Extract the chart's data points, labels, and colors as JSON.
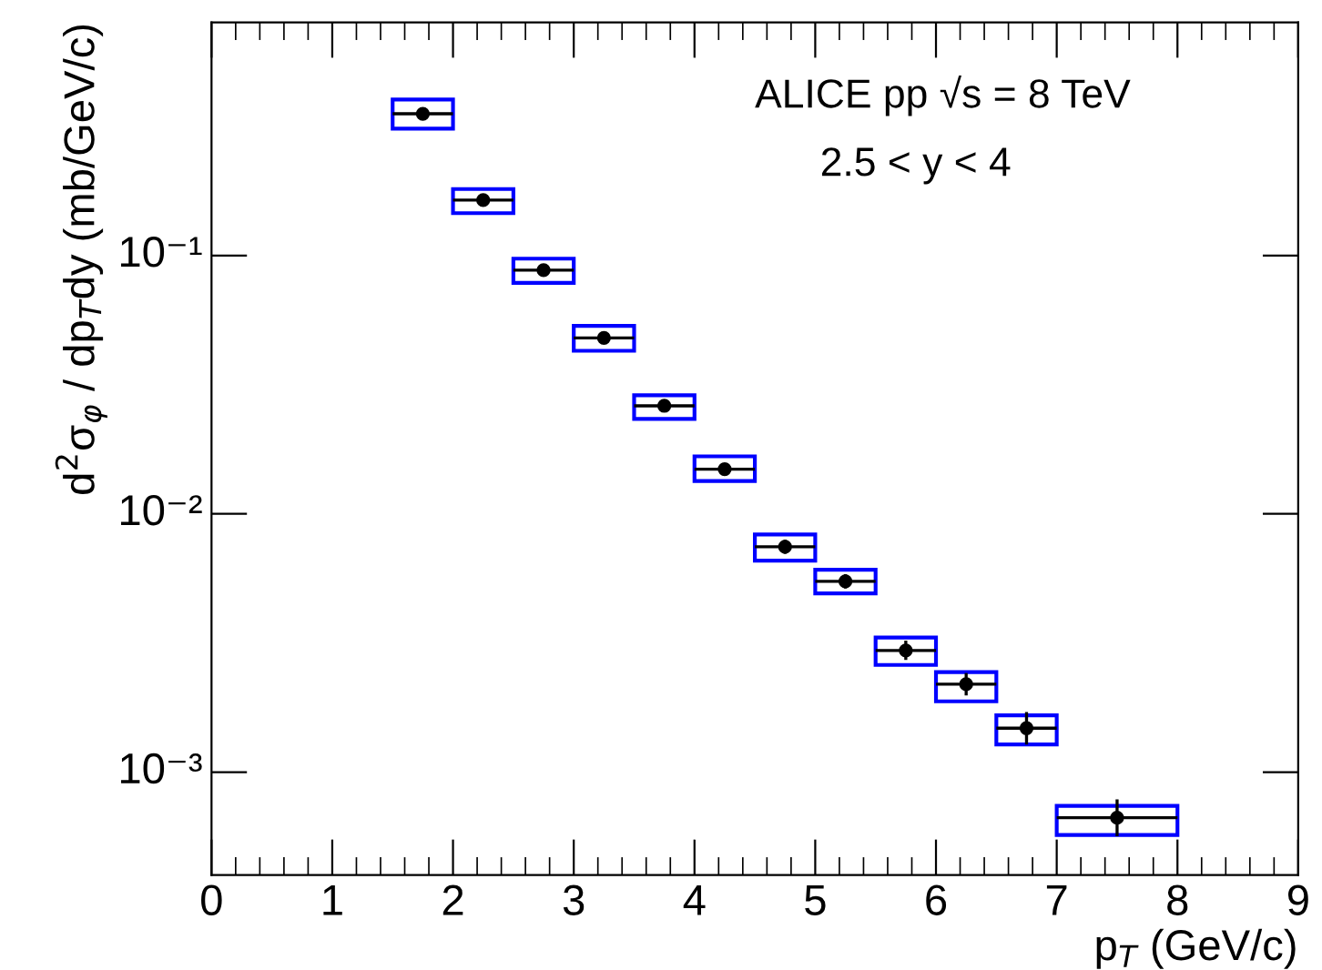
{
  "chart_data": {
    "type": "scatter",
    "xlabel": "p$_{T}$ (GeV/c)",
    "ylabel": "d$^{2}$σ$_{φ}$ / dp$_{T}$dy (mb/GeV/c)",
    "annotations": [
      "ALICE pp √s = 8 TeV",
      "2.5 < y < 4"
    ],
    "log": "y",
    "xlim": [
      0,
      9
    ],
    "xticks": [
      0,
      1,
      2,
      3,
      4,
      5,
      6,
      7,
      8,
      9
    ],
    "ylim": [
      0.0004,
      0.8
    ],
    "yticks": [
      {
        "value": 0.001,
        "label": "10⁻³"
      },
      {
        "value": 0.01,
        "label": "10⁻²"
      },
      {
        "value": 0.1,
        "label": "10⁻¹"
      }
    ],
    "grid": false,
    "legend": false,
    "series": [
      {
        "type": "bar",
        "color": "#0000ff",
        "x": [
          1.75,
          2.25,
          2.75,
          3.25,
          3.75,
          4.25,
          4.75,
          5.25,
          5.75,
          6.25,
          6.75,
          7.5
        ],
        "base": [
          0.31,
          0.146,
          0.0784,
          0.0428,
          0.0233,
          0.0134,
          0.00659,
          0.00492,
          0.0026,
          0.00188,
          0.00128,
          0.000571
        ],
        "values": [
          0.092,
          0.035,
          0.0189,
          0.0106,
          0.0055,
          0.0033,
          0.00173,
          0.00116,
          0.00072,
          0.00056,
          0.00038,
          0.000169
        ]
      },
      {
        "color": "#000000",
        "marker": "circle",
        "x": [
          1.75,
          2.25,
          2.75,
          3.25,
          3.75,
          4.25,
          4.75,
          5.25,
          5.75,
          6.25,
          6.75,
          7.5
        ],
        "xerrors": [
          0.25,
          0.25,
          0.25,
          0.25,
          0.25,
          0.25,
          0.25,
          0.25,
          0.25,
          0.25,
          0.25,
          0.5
        ],
        "values": [
          0.354,
          0.164,
          0.0878,
          0.048,
          0.0262,
          0.0149,
          0.00746,
          0.00548,
          0.00296,
          0.00219,
          0.00148,
          0.000666
        ],
        "errors": [
          [
            0.338,
            0.372
          ],
          [
            0.157,
            0.172
          ],
          [
            0.0842,
            0.0915
          ],
          [
            0.0465,
            0.0495
          ],
          [
            0.0254,
            0.027
          ],
          [
            0.0143,
            0.0155
          ],
          [
            0.007,
            0.00795
          ],
          [
            0.00514,
            0.00584
          ],
          [
            0.00272,
            0.00323
          ],
          [
            0.00198,
            0.00242
          ],
          [
            0.00128,
            0.00171
          ],
          [
            0.000565,
            0.000784
          ]
        ]
      }
    ]
  }
}
